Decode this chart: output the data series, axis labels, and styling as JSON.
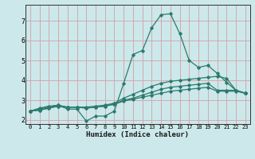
{
  "xlabel": "Humidex (Indice chaleur)",
  "bg_color": "#cce8ea",
  "grid_color": "#d4a0a8",
  "line_color": "#2a7a6e",
  "xlim": [
    -0.5,
    23.5
  ],
  "ylim": [
    1.8,
    7.8
  ],
  "xticks": [
    0,
    1,
    2,
    3,
    4,
    5,
    6,
    7,
    8,
    9,
    10,
    11,
    12,
    13,
    14,
    15,
    16,
    17,
    18,
    19,
    20,
    21,
    22,
    23
  ],
  "yticks": [
    2,
    3,
    4,
    5,
    6,
    7
  ],
  "series": [
    [
      2.45,
      2.6,
      2.7,
      2.75,
      2.55,
      2.55,
      1.95,
      2.2,
      2.2,
      2.45,
      3.85,
      5.3,
      5.5,
      6.65,
      7.3,
      7.35,
      6.35,
      5.0,
      4.65,
      4.75,
      4.35,
      3.9,
      3.5,
      3.35
    ],
    [
      2.45,
      2.55,
      2.65,
      2.75,
      2.65,
      2.65,
      2.65,
      2.7,
      2.75,
      2.85,
      3.1,
      3.3,
      3.5,
      3.7,
      3.85,
      3.95,
      4.0,
      4.05,
      4.1,
      4.15,
      4.2,
      4.1,
      3.5,
      3.35
    ],
    [
      2.45,
      2.5,
      2.6,
      2.7,
      2.65,
      2.65,
      2.6,
      2.65,
      2.7,
      2.8,
      3.0,
      3.1,
      3.25,
      3.4,
      3.55,
      3.65,
      3.7,
      3.75,
      3.8,
      3.85,
      3.5,
      3.5,
      3.5,
      3.35
    ],
    [
      2.45,
      2.5,
      2.6,
      2.7,
      2.65,
      2.65,
      2.6,
      2.65,
      2.7,
      2.8,
      2.95,
      3.05,
      3.15,
      3.25,
      3.35,
      3.45,
      3.5,
      3.55,
      3.6,
      3.65,
      3.45,
      3.45,
      3.45,
      3.35
    ]
  ]
}
